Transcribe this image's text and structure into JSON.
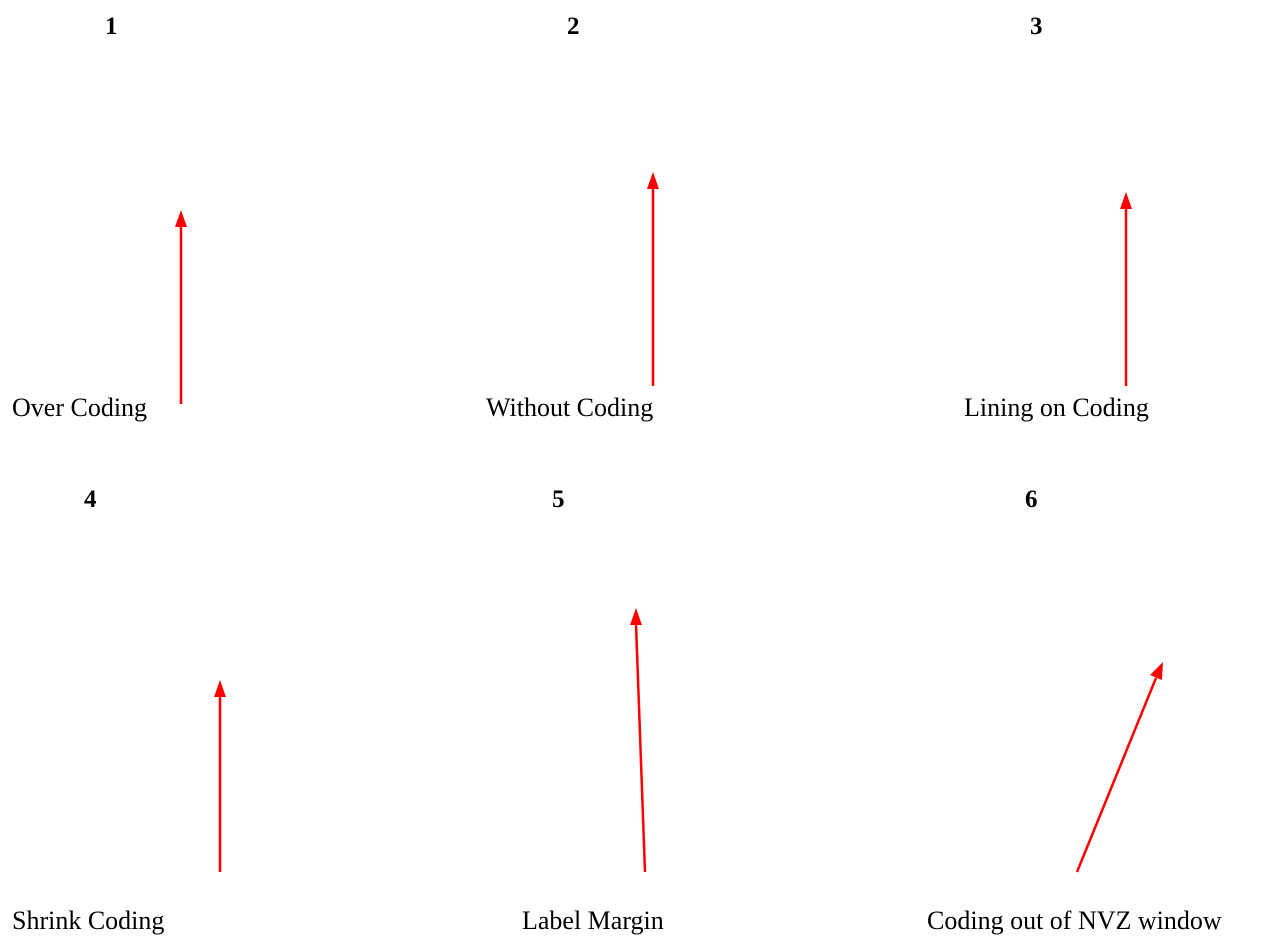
{
  "arrow_color": "#ff0000",
  "panels": [
    {
      "number": "1",
      "caption": "Over Coding"
    },
    {
      "number": "2",
      "caption": "Without Coding"
    },
    {
      "number": "3",
      "caption": "Lining on Coding"
    },
    {
      "number": "4",
      "caption": "Shrink Coding"
    },
    {
      "number": "5",
      "caption": "Label Margin"
    },
    {
      "number": "6",
      "caption": "Coding out of NVZ window"
    }
  ]
}
